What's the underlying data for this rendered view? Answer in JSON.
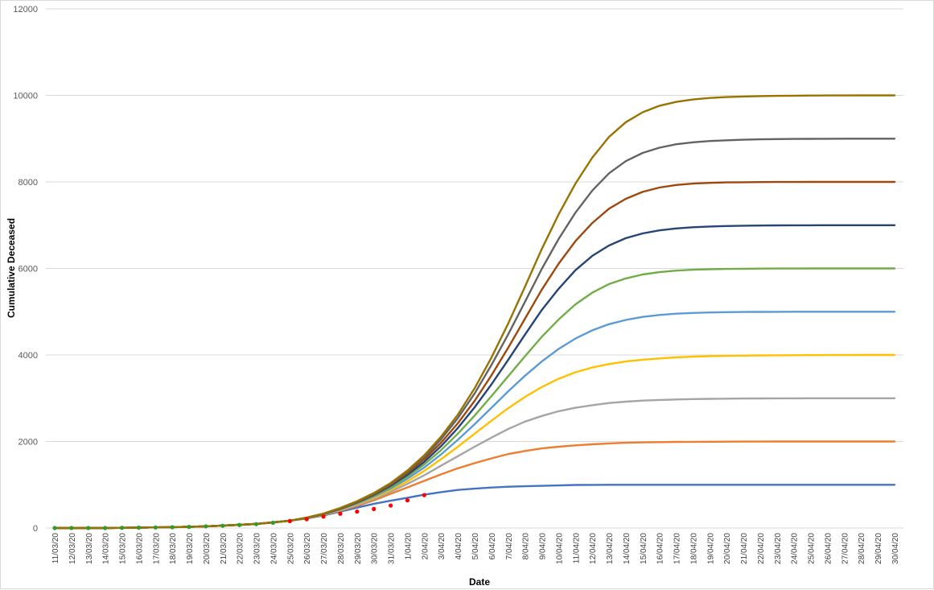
{
  "chart_data": {
    "type": "line",
    "title": "",
    "xlabel": "Date",
    "ylabel": "Cumulative Deceased",
    "ylim": [
      0,
      12000
    ],
    "yticks": [
      0,
      2000,
      4000,
      6000,
      8000,
      10000,
      12000
    ],
    "grid": true,
    "legend": "none",
    "categories": [
      "11/03/20",
      "12/03/20",
      "13/03/20",
      "14/03/20",
      "15/03/20",
      "16/03/20",
      "17/03/20",
      "18/03/20",
      "19/03/20",
      "20/03/20",
      "21/03/20",
      "22/03/20",
      "23/03/20",
      "24/03/20",
      "25/03/20",
      "26/03/20",
      "27/03/20",
      "28/03/20",
      "29/03/20",
      "30/03/20",
      "31/03/20",
      "1/04/20",
      "2/04/20",
      "3/04/20",
      "4/04/20",
      "5/04/20",
      "6/04/20",
      "7/04/20",
      "8/04/20",
      "9/04/20",
      "10/04/20",
      "11/04/20",
      "12/04/20",
      "13/04/20",
      "14/04/20",
      "15/04/20",
      "16/04/20",
      "17/04/20",
      "18/04/20",
      "19/04/20",
      "20/04/20",
      "21/04/20",
      "22/04/20",
      "23/04/20",
      "24/04/20",
      "25/04/20",
      "26/04/20",
      "27/04/20",
      "28/04/20",
      "29/04/20",
      "30/04/20"
    ],
    "series": [
      {
        "color": "#4472c4",
        "values": [
          0,
          0,
          0,
          0,
          5,
          10,
          14,
          20,
          28,
          40,
          55,
          75,
          95,
          130,
          170,
          220,
          290,
          380,
          470,
          560,
          630,
          700,
          770,
          830,
          880,
          910,
          935,
          955,
          965,
          975,
          985,
          995,
          998,
          1000,
          1000,
          1000,
          1000,
          1000,
          1000,
          1000,
          1000,
          1000,
          1000,
          1000,
          1000,
          1000,
          1000,
          1000,
          1000,
          1000,
          1000
        ]
      },
      {
        "color": "#ed7d31",
        "values": [
          0,
          0,
          0,
          0,
          5,
          10,
          14,
          20,
          28,
          40,
          55,
          75,
          95,
          130,
          170,
          225,
          300,
          400,
          510,
          640,
          790,
          940,
          1090,
          1240,
          1380,
          1500,
          1610,
          1710,
          1780,
          1840,
          1880,
          1910,
          1935,
          1955,
          1970,
          1980,
          1985,
          1990,
          1993,
          1995,
          1997,
          1998,
          1999,
          2000,
          2000,
          2000,
          2000,
          2000,
          2000,
          2000,
          2000
        ]
      },
      {
        "color": "#a5a5a5",
        "values": [
          0,
          0,
          0,
          0,
          5,
          10,
          14,
          20,
          28,
          40,
          55,
          75,
          95,
          130,
          170,
          228,
          305,
          410,
          530,
          670,
          840,
          1020,
          1220,
          1440,
          1660,
          1880,
          2090,
          2290,
          2460,
          2590,
          2700,
          2780,
          2840,
          2890,
          2920,
          2945,
          2960,
          2972,
          2980,
          2986,
          2990,
          2993,
          2995,
          2997,
          2998,
          2999,
          3000,
          3000,
          3000,
          3000,
          3000
        ]
      },
      {
        "color": "#ffc000",
        "values": [
          0,
          0,
          0,
          0,
          5,
          10,
          14,
          20,
          28,
          40,
          55,
          75,
          95,
          130,
          170,
          230,
          310,
          420,
          550,
          700,
          880,
          1080,
          1320,
          1590,
          1880,
          2180,
          2480,
          2770,
          3030,
          3260,
          3450,
          3600,
          3710,
          3790,
          3850,
          3890,
          3920,
          3945,
          3960,
          3972,
          3980,
          3986,
          3990,
          3993,
          3995,
          3997,
          3998,
          3999,
          4000,
          4000,
          4000
        ]
      },
      {
        "color": "#5b9bd5",
        "values": [
          0,
          0,
          0,
          0,
          5,
          10,
          14,
          20,
          28,
          40,
          55,
          75,
          95,
          130,
          170,
          232,
          315,
          430,
          565,
          725,
          915,
          1140,
          1400,
          1700,
          2040,
          2400,
          2780,
          3160,
          3520,
          3850,
          4140,
          4380,
          4570,
          4710,
          4810,
          4880,
          4925,
          4955,
          4972,
          4983,
          4990,
          4994,
          4996,
          4998,
          4999,
          5000,
          5000,
          5000,
          5000,
          5000,
          5000
        ]
      },
      {
        "color": "#70ad47",
        "values": [
          0,
          0,
          0,
          0,
          5,
          10,
          14,
          20,
          28,
          40,
          55,
          75,
          95,
          130,
          170,
          234,
          318,
          438,
          580,
          745,
          945,
          1190,
          1470,
          1800,
          2180,
          2600,
          3050,
          3510,
          3970,
          4420,
          4820,
          5170,
          5440,
          5640,
          5770,
          5860,
          5915,
          5950,
          5970,
          5982,
          5989,
          5993,
          5996,
          5998,
          5999,
          6000,
          6000,
          6000,
          6000,
          6000,
          6000
        ]
      },
      {
        "color": "#264478",
        "values": [
          0,
          0,
          0,
          0,
          5,
          10,
          14,
          20,
          28,
          40,
          55,
          75,
          95,
          130,
          170,
          236,
          322,
          445,
          590,
          765,
          975,
          1230,
          1530,
          1890,
          2310,
          2790,
          3320,
          3890,
          4470,
          5040,
          5530,
          5960,
          6290,
          6530,
          6700,
          6810,
          6880,
          6925,
          6953,
          6970,
          6981,
          6988,
          6992,
          6995,
          6997,
          6998,
          6999,
          7000,
          7000,
          7000,
          7000
        ]
      },
      {
        "color": "#9e480e",
        "values": [
          0,
          0,
          0,
          0,
          5,
          10,
          14,
          20,
          28,
          40,
          55,
          75,
          95,
          130,
          170,
          238,
          326,
          452,
          600,
          780,
          1000,
          1270,
          1590,
          1970,
          2420,
          2940,
          3530,
          4170,
          4840,
          5510,
          6110,
          6630,
          7050,
          7380,
          7610,
          7770,
          7870,
          7930,
          7960,
          7978,
          7988,
          7993,
          7996,
          7998,
          7999,
          8000,
          8000,
          8000,
          8000,
          8000,
          8000
        ]
      },
      {
        "color": "#636363",
        "values": [
          0,
          0,
          0,
          0,
          5,
          10,
          14,
          20,
          28,
          40,
          55,
          75,
          95,
          130,
          170,
          240,
          330,
          458,
          610,
          795,
          1020,
          1300,
          1640,
          2050,
          2540,
          3110,
          3770,
          4480,
          5230,
          5990,
          6680,
          7290,
          7800,
          8200,
          8480,
          8670,
          8790,
          8870,
          8915,
          8945,
          8962,
          8975,
          8984,
          8990,
          8994,
          8996,
          8998,
          8999,
          9000,
          9000,
          9000
        ]
      },
      {
        "color": "#997300",
        "values": [
          0,
          0,
          0,
          0,
          5,
          10,
          14,
          20,
          28,
          40,
          55,
          75,
          95,
          130,
          170,
          242,
          334,
          465,
          620,
          810,
          1040,
          1330,
          1680,
          2110,
          2620,
          3230,
          3940,
          4730,
          5580,
          6450,
          7250,
          7960,
          8560,
          9040,
          9380,
          9610,
          9760,
          9850,
          9905,
          9940,
          9960,
          9974,
          9983,
          9989,
          9993,
          9996,
          9998,
          9999,
          10000,
          10000,
          10000
        ]
      }
    ],
    "observed": [
      {
        "color": "#2e9b2e",
        "values": [
          0,
          0,
          0,
          0,
          5,
          9,
          13,
          19,
          26,
          38,
          52,
          70,
          90,
          122,
          160
        ]
      },
      {
        "color": "#ff0000",
        "values": [
          null,
          null,
          null,
          null,
          null,
          null,
          null,
          null,
          null,
          null,
          null,
          null,
          null,
          null,
          160,
          205,
          265,
          330,
          380,
          440,
          520,
          640,
          760
        ]
      }
    ]
  }
}
